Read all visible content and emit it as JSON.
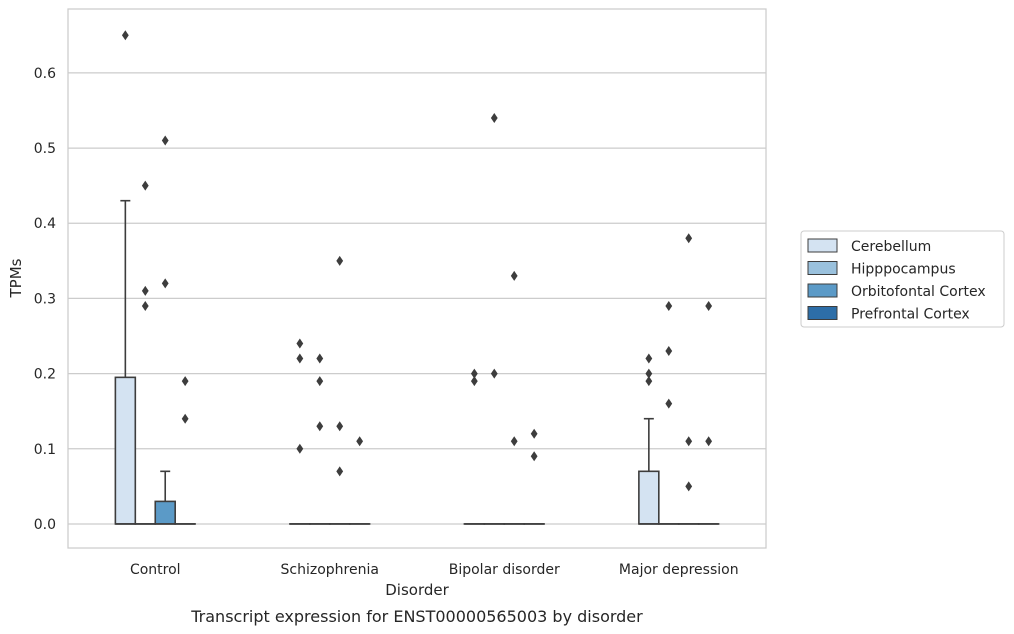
{
  "caption": "Transcript expression for ENST00000565003 by disorder",
  "chart_data": {
    "type": "box",
    "xlabel": "Disorder",
    "ylabel": "TPMs",
    "ylim": [
      -0.032,
      0.685
    ],
    "yticks": [
      "0.0",
      "0.1",
      "0.2",
      "0.3",
      "0.4",
      "0.5",
      "0.6"
    ],
    "grid": "horizontal",
    "legend_position": "right",
    "categories": [
      "Control",
      "Schizophrenia",
      "Bipolar disorder",
      "Major depression"
    ],
    "series": [
      {
        "name": "Cerebellum",
        "color": "#d4e3f2",
        "boxes": [
          {
            "q1": 0,
            "median": 0,
            "q3": 0.195,
            "whisker_low": 0,
            "whisker_high": 0.43,
            "outliers": [
              0.65
            ]
          },
          {
            "q1": 0,
            "median": 0,
            "q3": 0,
            "whisker_low": 0,
            "whisker_high": 0,
            "outliers": [
              0.1,
              0.22,
              0.24
            ]
          },
          {
            "q1": 0,
            "median": 0,
            "q3": 0,
            "whisker_low": 0,
            "whisker_high": 0,
            "outliers": [
              0.19,
              0.2
            ]
          },
          {
            "q1": 0,
            "median": 0,
            "q3": 0.07,
            "whisker_low": 0,
            "whisker_high": 0.14,
            "outliers": [
              0.19,
              0.2,
              0.22
            ]
          }
        ]
      },
      {
        "name": "Hipppocampus",
        "color": "#9ac1dd",
        "boxes": [
          {
            "q1": 0,
            "median": 0,
            "q3": 0,
            "whisker_low": 0,
            "whisker_high": 0,
            "outliers": [
              0.29,
              0.31,
              0.45
            ]
          },
          {
            "q1": 0,
            "median": 0,
            "q3": 0,
            "whisker_low": 0,
            "whisker_high": 0,
            "outliers": [
              0.13,
              0.19,
              0.22
            ]
          },
          {
            "q1": 0,
            "median": 0,
            "q3": 0,
            "whisker_low": 0,
            "whisker_high": 0,
            "outliers": [
              0.2,
              0.54
            ]
          },
          {
            "q1": 0,
            "median": 0,
            "q3": 0,
            "whisker_low": 0,
            "whisker_high": 0,
            "outliers": [
              0.16,
              0.23,
              0.29
            ]
          }
        ]
      },
      {
        "name": "Orbitofontal Cortex",
        "color": "#5b9ac7",
        "boxes": [
          {
            "q1": 0,
            "median": 0,
            "q3": 0.03,
            "whisker_low": 0,
            "whisker_high": 0.07,
            "outliers": [
              0.32,
              0.51
            ]
          },
          {
            "q1": 0,
            "median": 0,
            "q3": 0,
            "whisker_low": 0,
            "whisker_high": 0,
            "outliers": [
              0.07,
              0.13,
              0.35
            ]
          },
          {
            "q1": 0,
            "median": 0,
            "q3": 0,
            "whisker_low": 0,
            "whisker_high": 0,
            "outliers": [
              0.11,
              0.33
            ]
          },
          {
            "q1": 0,
            "median": 0,
            "q3": 0,
            "whisker_low": 0,
            "whisker_high": 0,
            "outliers": [
              0.05,
              0.11,
              0.38
            ]
          }
        ]
      },
      {
        "name": "Prefrontal Cortex",
        "color": "#2d6ea8",
        "boxes": [
          {
            "q1": 0,
            "median": 0,
            "q3": 0,
            "whisker_low": 0,
            "whisker_high": 0,
            "outliers": [
              0.14,
              0.19
            ]
          },
          {
            "q1": 0,
            "median": 0,
            "q3": 0,
            "whisker_low": 0,
            "whisker_high": 0,
            "outliers": [
              0.11
            ]
          },
          {
            "q1": 0,
            "median": 0,
            "q3": 0,
            "whisker_low": 0,
            "whisker_high": 0,
            "outliers": [
              0.09,
              0.12
            ]
          },
          {
            "q1": 0,
            "median": 0,
            "q3": 0,
            "whisker_low": 0,
            "whisker_high": 0,
            "outliers": [
              0.11,
              0.29
            ]
          }
        ]
      }
    ]
  }
}
